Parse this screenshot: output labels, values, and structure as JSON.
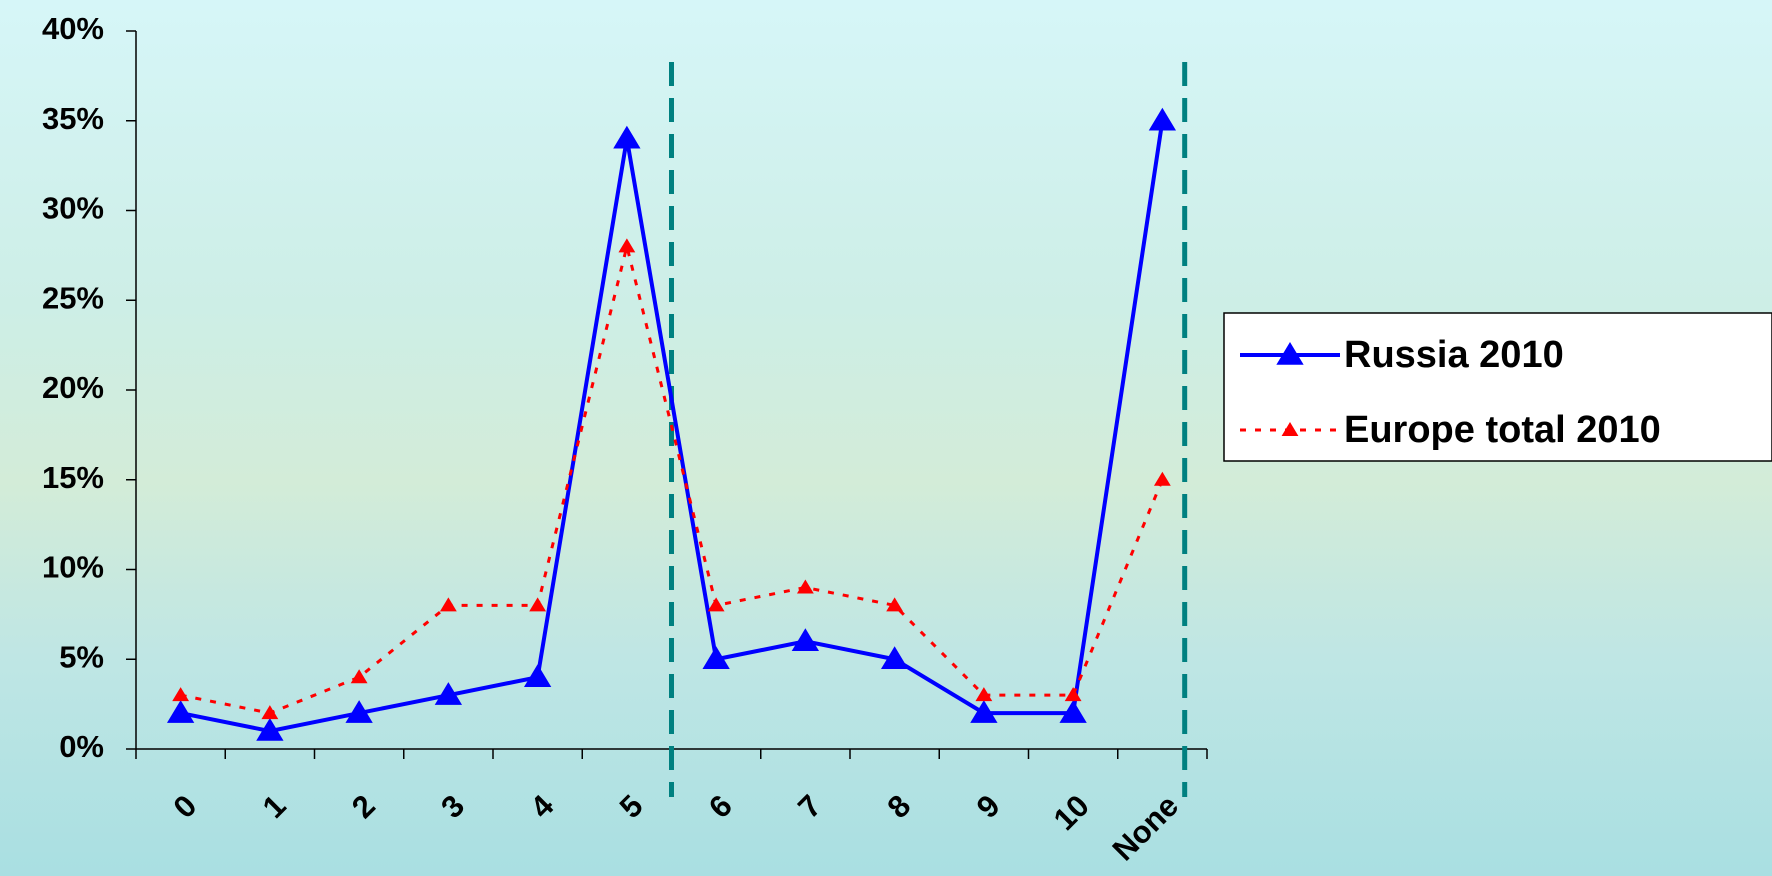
{
  "chart_data": {
    "type": "line",
    "categories": [
      "0",
      "1",
      "2",
      "3",
      "4",
      "5",
      "6",
      "7",
      "8",
      "9",
      "10",
      "None"
    ],
    "series": [
      {
        "name": "Russia 2010",
        "color": "#0000ff",
        "values": [
          2,
          1,
          2,
          3,
          4,
          34,
          5,
          6,
          5,
          2,
          2,
          35
        ]
      },
      {
        "name": "Europe total 2010",
        "color": "#ff0000",
        "values": [
          3,
          2,
          4,
          8,
          8,
          28,
          8,
          9,
          8,
          3,
          3,
          15
        ]
      }
    ],
    "ylim": [
      0,
      40
    ],
    "yticks": [
      {
        "value": 0,
        "label": "0%"
      },
      {
        "value": 5,
        "label": "5%"
      },
      {
        "value": 10,
        "label": "10%"
      },
      {
        "value": 15,
        "label": "15%"
      },
      {
        "value": 20,
        "label": "20%"
      },
      {
        "value": 25,
        "label": "25%"
      },
      {
        "value": 30,
        "label": "30%"
      },
      {
        "value": 35,
        "label": "35%"
      },
      {
        "value": 40,
        "label": "40%"
      }
    ],
    "grid": false,
    "legend": "right"
  }
}
